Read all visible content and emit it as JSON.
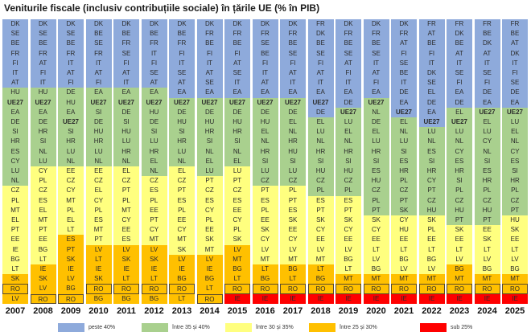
{
  "chart_data": {
    "type": "table",
    "title": "Veniturile fiscale (inclusiv contribuțiile sociale) în țările UE (% în PIB)",
    "xlabel": "",
    "ylabel": "",
    "categories": [
      "2007",
      "2008",
      "2009",
      "2010",
      "2011",
      "2012",
      "2013",
      "2014",
      "2015",
      "2016",
      "2017",
      "2018",
      "2019",
      "2020",
      "2021",
      "2022",
      "2023",
      "2024",
      "2025"
    ],
    "bands": [
      {
        "key": "b40",
        "label": "peste 40%",
        "color": "#8eaadb"
      },
      {
        "key": "b35",
        "label": "între 35 și 40%",
        "color": "#a9d08e"
      },
      {
        "key": "b30",
        "label": "între 30 și 35%",
        "color": "#ffff7f"
      },
      {
        "key": "b25",
        "label": "între 25 și 30%",
        "color": "#ffc000"
      },
      {
        "key": "b0",
        "label": "sub 25%",
        "color": "#ff0000"
      }
    ],
    "highlight": "RO",
    "bold": [
      "UE27"
    ],
    "columns": [
      {
        "year": "2007",
        "groups": [
          [
            "DK",
            "SE",
            "BE",
            "FR",
            "FI",
            "IT",
            "AT"
          ],
          [
            "HU",
            "UE27",
            "EA",
            "DE",
            "SI",
            "HR",
            "ES",
            "CY",
            "LU",
            "NL"
          ],
          [
            "CZ",
            "PL",
            "MT",
            "EL",
            "PT",
            "EE",
            "IE",
            "BG",
            "LT"
          ],
          [
            "SK",
            "RO",
            "LV"
          ],
          []
        ]
      },
      {
        "year": "2008",
        "groups": [
          [
            "DK",
            "SE",
            "BE",
            "FR",
            "AT",
            "FI",
            "IT"
          ],
          [
            "HU",
            "UE27",
            "EA",
            "DE",
            "HR",
            "SI",
            "NL",
            "LU"
          ],
          [
            "CY",
            "PL",
            "CZ",
            "ES",
            "EL",
            "MT",
            "PT",
            "EE",
            "BG",
            "LT"
          ],
          [
            "IE",
            "SK",
            "LV",
            "RO"
          ],
          []
        ]
      },
      {
        "year": "2009",
        "groups": [
          [
            "DK",
            "SE",
            "BE",
            "FR",
            "IT",
            "AT",
            "FI"
          ],
          [
            "DE",
            "HU",
            "EA",
            "UE27",
            "SI",
            "HR",
            "LU",
            "NL"
          ],
          [
            "EE",
            "CZ",
            "CY",
            "MT",
            "PL",
            "EL",
            "LT"
          ],
          [
            "ES",
            "PT",
            "SK",
            "IE",
            "LV",
            "BG",
            "RO"
          ],
          []
        ]
      },
      {
        "year": "2010",
        "groups": [
          [
            "DK",
            "BE",
            "SE",
            "FR",
            "IT",
            "AT",
            "FI"
          ],
          [
            "EA",
            "UE27",
            "SI",
            "DE",
            "HU",
            "HR",
            "LU",
            "NL"
          ],
          [
            "EE",
            "CZ",
            "EL",
            "CY",
            "PL",
            "ES",
            "MT",
            "PT"
          ],
          [
            "LV",
            "LT",
            "IE",
            "SK",
            "RO",
            "BG"
          ],
          []
        ]
      },
      {
        "year": "2011",
        "groups": [
          [
            "DK",
            "BE",
            "FR",
            "SE",
            "FI",
            "AT",
            "IT"
          ],
          [
            "EA",
            "UE27",
            "DE",
            "SI",
            "HU",
            "LU",
            "HR",
            "NL"
          ],
          [
            "EL",
            "CZ",
            "PT",
            "PL",
            "MT",
            "CY",
            "EE",
            "ES"
          ],
          [
            "LV",
            "SK",
            "IE",
            "LT",
            "RO",
            "BG"
          ],
          []
        ]
      },
      {
        "year": "2012",
        "groups": [
          [
            "DK",
            "BE",
            "FR",
            "IT",
            "FI",
            "SE",
            "AT"
          ],
          [
            "EA",
            "UE27",
            "HU",
            "DE",
            "SI",
            "LU",
            "HR",
            "EL",
            "NL"
          ],
          [
            "CZ",
            "ES",
            "PL",
            "EE",
            "PT",
            "CY",
            "MT"
          ],
          [
            "LV",
            "SK",
            "IE",
            "LT",
            "RO",
            "BG"
          ],
          []
        ]
      },
      {
        "year": "2013",
        "groups": [
          [
            "DK",
            "BE",
            "FR",
            "FI",
            "IT",
            "SE",
            "AT",
            "EA"
          ],
          [
            "UE27",
            "DE",
            "HU",
            "SI",
            "HR",
            "LU",
            "NL"
          ],
          [
            "EL",
            "CZ",
            "PT",
            "ES",
            "PL",
            "EE",
            "CY",
            "MT",
            "SK"
          ],
          [
            "LV",
            "IE",
            "BG",
            "RO",
            "LT"
          ],
          []
        ]
      },
      {
        "year": "2014",
        "groups": [
          [
            "DK",
            "FR",
            "BE",
            "FI",
            "IT",
            "AT",
            "SE",
            "EA"
          ],
          [
            "UE27",
            "DE",
            "HU",
            "HR",
            "SI",
            "NL",
            "EL",
            "LU"
          ],
          [
            "PT",
            "CZ",
            "ES",
            "CY",
            "PL",
            "EE",
            "SK",
            "MT"
          ],
          [
            "LV",
            "IE",
            "BG",
            "LT",
            "RO"
          ],
          []
        ]
      },
      {
        "year": "2015",
        "groups": [
          [
            "DK",
            "FR",
            "BE",
            "FI",
            "AT",
            "SE",
            "IT",
            "EA"
          ],
          [
            "UE27",
            "DE",
            "HU",
            "HR",
            "SI",
            "NL",
            "EL"
          ],
          [
            "LU",
            "PT",
            "CZ",
            "ES",
            "EE",
            "CY",
            "PL",
            "SK"
          ],
          [
            "LV",
            "MT",
            "BG",
            "LT",
            "RO"
          ],
          [
            "IE"
          ]
        ]
      },
      {
        "year": "2016",
        "groups": [
          [
            "DK",
            "FR",
            "SE",
            "BE",
            "FI",
            "IT",
            "AT",
            "EA"
          ],
          [
            "UE27",
            "DE",
            "HU",
            "EL",
            "NL",
            "HR",
            "SI",
            "LU",
            "CZ"
          ],
          [
            "PT",
            "ES",
            "PL",
            "EE",
            "SK",
            "CY",
            "LV",
            "MT"
          ],
          [
            "LT",
            "BG",
            "RO"
          ],
          [
            "IE"
          ]
        ]
      },
      {
        "year": "2017",
        "groups": [
          [
            "DK",
            "FR",
            "BE",
            "SE",
            "FI",
            "AT",
            "IT",
            "EA"
          ],
          [
            "UE27",
            "DE",
            "EL",
            "NL",
            "HR",
            "HU",
            "SI",
            "LU",
            "CZ"
          ],
          [
            "PL",
            "PT",
            "ES",
            "SK",
            "EE",
            "CY",
            "LV",
            "MT"
          ],
          [
            "BG",
            "LT",
            "RO"
          ],
          [
            "IE"
          ]
        ]
      },
      {
        "year": "2018",
        "groups": [
          [
            "FR",
            "DK",
            "BE",
            "SE",
            "FI",
            "AT",
            "IT",
            "EA",
            "UE27",
            "DE"
          ],
          [
            "EL",
            "LU",
            "NL",
            "HR",
            "SI",
            "HU",
            "CZ",
            "PL"
          ],
          [
            "ES",
            "PT",
            "SK",
            "CY",
            "EE",
            "LV",
            "MT"
          ],
          [
            "LT",
            "BG",
            "RO"
          ],
          [
            "IE"
          ]
        ]
      },
      {
        "year": "2019",
        "groups": [
          [
            "DK",
            "FR",
            "BE",
            "SE",
            "AT",
            "FI",
            "IT",
            "EA",
            "DE"
          ],
          [
            "UE27",
            "LU",
            "EL",
            "NL",
            "HR",
            "SI",
            "HU",
            "CZ",
            "PL"
          ],
          [
            "ES",
            "PT",
            "SK",
            "CY",
            "EE",
            "LV",
            "BG",
            "LT"
          ],
          [
            "MT",
            "RO"
          ],
          [
            "IE"
          ]
        ]
      },
      {
        "year": "2020",
        "groups": [
          [
            "DK",
            "FR",
            "BE",
            "SE",
            "IT",
            "AT",
            "FI",
            "EA"
          ],
          [
            "UE27",
            "NL",
            "DE",
            "EL",
            "LU",
            "HR",
            "SI",
            "ES",
            "HU",
            "CZ",
            "PL",
            "PT"
          ],
          [
            "SK",
            "CY",
            "EE",
            "LT",
            "LV",
            "BG"
          ],
          [
            "MT",
            "RO"
          ],
          [
            "IE"
          ]
        ]
      },
      {
        "year": "2021",
        "groups": [
          [
            "DK",
            "FR",
            "AT",
            "FI",
            "SE",
            "BE",
            "IT",
            "DE",
            "EA",
            "UE27"
          ],
          [
            "EL",
            "NL",
            "LU",
            "SI",
            "ES",
            "HR",
            "PL",
            "CZ",
            "PT",
            "SK"
          ],
          [
            "CY",
            "HU",
            "EE",
            "LT",
            "BG",
            "LV"
          ],
          [
            "MT",
            "RO"
          ],
          [
            "IE"
          ]
        ]
      },
      {
        "year": "2022",
        "groups": [
          [
            "FR",
            "AT",
            "BE",
            "FI",
            "IT",
            "DK",
            "SE",
            "EL",
            "DE",
            "EA",
            "UE27"
          ],
          [
            "LU",
            "NL",
            "ES",
            "SI",
            "HR",
            "CY",
            "PT",
            "CZ",
            "HU"
          ],
          [
            "SK",
            "PL",
            "EE",
            "LT",
            "BG",
            "LV"
          ],
          [
            "MT",
            "RO"
          ],
          [
            "IE"
          ]
        ]
      },
      {
        "year": "2023",
        "groups": [
          [
            "FR",
            "DK",
            "BE",
            "AT",
            "IT",
            "SE",
            "FI",
            "EA",
            "DE"
          ],
          [
            "EL",
            "UE27",
            "LU",
            "NL",
            "CY",
            "ES",
            "HR",
            "SI",
            "PL",
            "CZ",
            "HU",
            "PT"
          ],
          [
            "SK",
            "EE",
            "LT",
            "LV"
          ],
          [
            "BG",
            "MT",
            "RO"
          ],
          [
            "IE"
          ]
        ]
      },
      {
        "year": "2024",
        "groups": [
          [
            "FR",
            "BE",
            "DK",
            "AT",
            "IT",
            "SE",
            "FI",
            "DE",
            "EA"
          ],
          [
            "UE27",
            "EL",
            "LU",
            "CY",
            "NL",
            "SI",
            "ES",
            "HR",
            "PL",
            "CZ",
            "HU",
            "PT"
          ],
          [
            "EE",
            "SK",
            "LT",
            "LV",
            "BG"
          ],
          [
            "MT",
            "RO"
          ],
          [
            "IE"
          ]
        ]
      },
      {
        "year": "2025",
        "groups": [
          [
            "FR",
            "BE",
            "AT",
            "DK",
            "IT",
            "FI",
            "SE",
            "DE",
            "EA"
          ],
          [
            "UE27",
            "LU",
            "EL",
            "NL",
            "CY",
            "ES",
            "SI",
            "HR",
            "PL",
            "CZ",
            "PT"
          ],
          [
            "HU",
            "SK",
            "EE",
            "LT",
            "LV",
            "BG"
          ],
          [
            "MT",
            "RO"
          ],
          [
            "IE"
          ]
        ]
      }
    ]
  }
}
